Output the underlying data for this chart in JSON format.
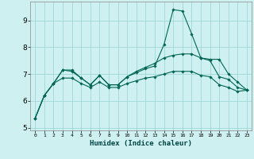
{
  "xlabel": "Humidex (Indice chaleur)",
  "bg_color": "#cef0f0",
  "grid_color": "#a0d8d8",
  "line_color": "#006655",
  "xlim": [
    -0.5,
    23.5
  ],
  "ylim": [
    4.9,
    9.7
  ],
  "yticks": [
    5,
    6,
    7,
    8,
    9
  ],
  "xticks": [
    0,
    1,
    2,
    3,
    4,
    5,
    6,
    7,
    8,
    9,
    10,
    11,
    12,
    13,
    14,
    15,
    16,
    17,
    18,
    19,
    20,
    21,
    22,
    23
  ],
  "line1_x": [
    0,
    1,
    2,
    3,
    4,
    5,
    6,
    7,
    8,
    9,
    10,
    11,
    12,
    13,
    14,
    15,
    16,
    17,
    18,
    19,
    20,
    21,
    22,
    23
  ],
  "line1_y": [
    5.35,
    6.2,
    6.65,
    7.15,
    7.15,
    6.85,
    6.6,
    6.95,
    6.6,
    6.6,
    6.9,
    7.05,
    7.2,
    7.3,
    8.1,
    9.4,
    9.35,
    8.5,
    7.6,
    7.5,
    6.9,
    6.8,
    6.5,
    6.4
  ],
  "line2_x": [
    0,
    1,
    2,
    3,
    4,
    5,
    6,
    7,
    8,
    9,
    10,
    11,
    12,
    13,
    14,
    15,
    16,
    17,
    18,
    19,
    20,
    21,
    22,
    23
  ],
  "line2_y": [
    5.35,
    6.2,
    6.65,
    7.15,
    7.1,
    6.85,
    6.6,
    6.95,
    6.6,
    6.6,
    6.9,
    7.1,
    7.25,
    7.4,
    7.6,
    7.7,
    7.75,
    7.75,
    7.6,
    7.55,
    7.55,
    7.0,
    6.7,
    6.4
  ],
  "line3_x": [
    0,
    1,
    2,
    3,
    4,
    5,
    6,
    7,
    8,
    9,
    10,
    11,
    12,
    13,
    14,
    15,
    16,
    17,
    18,
    19,
    20,
    21,
    22,
    23
  ],
  "line3_y": [
    5.35,
    6.2,
    6.65,
    6.85,
    6.85,
    6.65,
    6.5,
    6.7,
    6.5,
    6.5,
    6.65,
    6.75,
    6.85,
    6.9,
    7.0,
    7.1,
    7.1,
    7.1,
    6.95,
    6.9,
    6.6,
    6.5,
    6.35,
    6.4
  ]
}
